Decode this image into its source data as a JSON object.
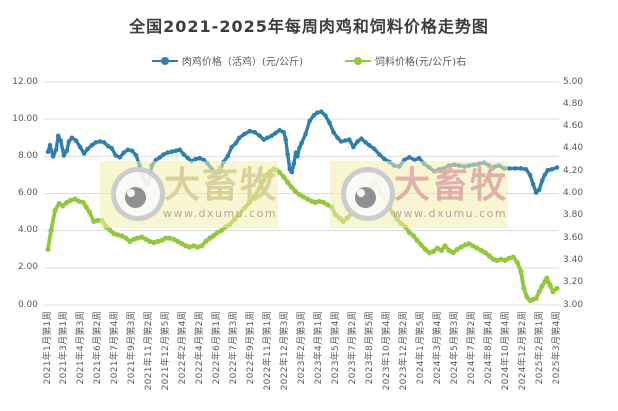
{
  "watermark": {
    "brand": "大畜牧",
    "url": "www.dxumu.com"
  },
  "chart_data": {
    "type": "line",
    "title": "全国2021-2025年每周肉鸡和饲料价格走势图",
    "grid": "horizontal",
    "legend_position": "top",
    "x_encoding": "points_t_v pairs: t = normalized 0-1 position along weekly date axis, v = price value",
    "x_axis": {
      "tick_labels": [
        "2021年1月第1周",
        "2021年3月第1周",
        "2021年4月第3周",
        "2021年6月第2周",
        "2021年7月第4周",
        "2021年9月第3周",
        "2021年11月第2周",
        "2021年12月第5周",
        "2022年2月第4周",
        "2022年4月第2周",
        "2022年6月第1周",
        "2022年7月第3周",
        "2022年9月第1周",
        "2022年11月第1周",
        "2022年12月第3周",
        "2023年2月第3周",
        "2023年4月第1周",
        "2023年5月第4周",
        "2023年7月第2周",
        "2023年8月第5周",
        "2023年10月第4周",
        "2023年12月第2周",
        "2024年1月第5周",
        "2024年3月第4周",
        "2024年5月第3周",
        "2024年7月第2周",
        "2024年8月第4周",
        "2024年10月第4周",
        "2024年12月第2周",
        "2025年2月第1周",
        "2025年3月第4周"
      ]
    },
    "left_axis": {
      "min": 0,
      "max": 12,
      "tick_step": 2,
      "tick_labels": [
        "12.00",
        "10.00",
        "8.00",
        "6.00",
        "4.00",
        "2.00",
        "0.00"
      ]
    },
    "right_axis": {
      "min": 3,
      "max": 5,
      "tick_step": 0.2,
      "tick_labels": [
        "5.00",
        "4.80",
        "4.60",
        "4.40",
        "4.20",
        "4.00",
        "3.80",
        "3.60",
        "3.40",
        "3.20",
        "3.00"
      ]
    },
    "series": [
      {
        "name": "肉鸡价格（活鸡）(元/公斤)",
        "axis": "left",
        "color": "#2f7fad",
        "marker": "circle",
        "points_t_v": [
          [
            0.0,
            8.25
          ],
          [
            0.004,
            8.6
          ],
          [
            0.01,
            8.0
          ],
          [
            0.016,
            8.35
          ],
          [
            0.02,
            9.1
          ],
          [
            0.025,
            8.85
          ],
          [
            0.031,
            8.05
          ],
          [
            0.037,
            8.3
          ],
          [
            0.041,
            8.8
          ],
          [
            0.047,
            9.0
          ],
          [
            0.055,
            8.85
          ],
          [
            0.063,
            8.5
          ],
          [
            0.071,
            8.15
          ],
          [
            0.078,
            8.4
          ],
          [
            0.086,
            8.6
          ],
          [
            0.094,
            8.75
          ],
          [
            0.102,
            8.8
          ],
          [
            0.11,
            8.75
          ],
          [
            0.118,
            8.55
          ],
          [
            0.125,
            8.45
          ],
          [
            0.133,
            8.05
          ],
          [
            0.141,
            7.95
          ],
          [
            0.149,
            8.2
          ],
          [
            0.157,
            8.35
          ],
          [
            0.165,
            8.3
          ],
          [
            0.173,
            8.05
          ],
          [
            0.18,
            7.5
          ],
          [
            0.186,
            6.9
          ],
          [
            0.192,
            6.55
          ],
          [
            0.196,
            6.5
          ],
          [
            0.2,
            6.9
          ],
          [
            0.204,
            7.5
          ],
          [
            0.212,
            7.8
          ],
          [
            0.22,
            7.95
          ],
          [
            0.227,
            8.1
          ],
          [
            0.235,
            8.2
          ],
          [
            0.243,
            8.25
          ],
          [
            0.251,
            8.3
          ],
          [
            0.259,
            8.35
          ],
          [
            0.267,
            8.1
          ],
          [
            0.275,
            7.9
          ],
          [
            0.282,
            7.75
          ],
          [
            0.29,
            7.85
          ],
          [
            0.298,
            7.9
          ],
          [
            0.306,
            7.8
          ],
          [
            0.314,
            7.6
          ],
          [
            0.322,
            7.3
          ],
          [
            0.329,
            7.1
          ],
          [
            0.337,
            7.15
          ],
          [
            0.345,
            7.7
          ],
          [
            0.353,
            8.0
          ],
          [
            0.361,
            8.5
          ],
          [
            0.369,
            8.7
          ],
          [
            0.376,
            9.0
          ],
          [
            0.386,
            9.2
          ],
          [
            0.396,
            9.35
          ],
          [
            0.406,
            9.3
          ],
          [
            0.416,
            9.1
          ],
          [
            0.424,
            8.9
          ],
          [
            0.431,
            9.0
          ],
          [
            0.439,
            9.1
          ],
          [
            0.447,
            9.25
          ],
          [
            0.455,
            9.4
          ],
          [
            0.463,
            9.3
          ],
          [
            0.467,
            8.9
          ],
          [
            0.471,
            8.1
          ],
          [
            0.475,
            7.3
          ],
          [
            0.479,
            7.15
          ],
          [
            0.483,
            7.6
          ],
          [
            0.487,
            8.2
          ],
          [
            0.49,
            8.0
          ],
          [
            0.494,
            8.45
          ],
          [
            0.498,
            8.7
          ],
          [
            0.506,
            9.2
          ],
          [
            0.514,
            9.9
          ],
          [
            0.522,
            10.2
          ],
          [
            0.529,
            10.35
          ],
          [
            0.537,
            10.4
          ],
          [
            0.545,
            10.2
          ],
          [
            0.553,
            9.8
          ],
          [
            0.561,
            9.3
          ],
          [
            0.569,
            9.0
          ],
          [
            0.576,
            8.8
          ],
          [
            0.584,
            8.85
          ],
          [
            0.592,
            8.9
          ],
          [
            0.6,
            8.5
          ],
          [
            0.608,
            8.8
          ],
          [
            0.616,
            8.95
          ],
          [
            0.624,
            8.75
          ],
          [
            0.631,
            8.6
          ],
          [
            0.641,
            8.4
          ],
          [
            0.651,
            8.1
          ],
          [
            0.661,
            7.85
          ],
          [
            0.671,
            7.7
          ],
          [
            0.68,
            7.5
          ],
          [
            0.69,
            7.45
          ],
          [
            0.7,
            7.8
          ],
          [
            0.71,
            7.95
          ],
          [
            0.72,
            7.8
          ],
          [
            0.729,
            7.9
          ],
          [
            0.739,
            7.6
          ],
          [
            0.749,
            7.4
          ],
          [
            0.759,
            7.2
          ],
          [
            0.769,
            7.3
          ],
          [
            0.778,
            7.35
          ],
          [
            0.788,
            7.5
          ],
          [
            0.798,
            7.55
          ],
          [
            0.808,
            7.5
          ],
          [
            0.818,
            7.45
          ],
          [
            0.827,
            7.5
          ],
          [
            0.837,
            7.55
          ],
          [
            0.847,
            7.6
          ],
          [
            0.857,
            7.65
          ],
          [
            0.867,
            7.5
          ],
          [
            0.873,
            7.35
          ],
          [
            0.878,
            7.45
          ],
          [
            0.886,
            7.5
          ],
          [
            0.896,
            7.35
          ],
          [
            0.906,
            7.35
          ],
          [
            0.918,
            7.35
          ],
          [
            0.929,
            7.35
          ],
          [
            0.939,
            7.3
          ],
          [
            0.947,
            7.0
          ],
          [
            0.953,
            6.5
          ],
          [
            0.959,
            6.05
          ],
          [
            0.965,
            6.2
          ],
          [
            0.971,
            6.7
          ],
          [
            0.976,
            7.0
          ],
          [
            0.982,
            7.25
          ],
          [
            0.99,
            7.3
          ],
          [
            1.0,
            7.4
          ]
        ]
      },
      {
        "name": "饲料价格(元/公斤)右",
        "axis": "right",
        "color": "#93c83d",
        "marker": "circle",
        "points_t_v": [
          [
            0.0,
            3.5
          ],
          [
            0.006,
            3.67
          ],
          [
            0.014,
            3.85
          ],
          [
            0.022,
            3.91
          ],
          [
            0.029,
            3.89
          ],
          [
            0.037,
            3.92
          ],
          [
            0.045,
            3.94
          ],
          [
            0.053,
            3.95
          ],
          [
            0.061,
            3.93
          ],
          [
            0.069,
            3.92
          ],
          [
            0.075,
            3.88
          ],
          [
            0.082,
            3.83
          ],
          [
            0.09,
            3.75
          ],
          [
            0.098,
            3.76
          ],
          [
            0.106,
            3.76
          ],
          [
            0.114,
            3.7
          ],
          [
            0.122,
            3.67
          ],
          [
            0.129,
            3.64
          ],
          [
            0.137,
            3.63
          ],
          [
            0.145,
            3.62
          ],
          [
            0.153,
            3.6
          ],
          [
            0.161,
            3.57
          ],
          [
            0.169,
            3.59
          ],
          [
            0.176,
            3.6
          ],
          [
            0.184,
            3.61
          ],
          [
            0.192,
            3.59
          ],
          [
            0.2,
            3.57
          ],
          [
            0.208,
            3.56
          ],
          [
            0.216,
            3.57
          ],
          [
            0.224,
            3.58
          ],
          [
            0.231,
            3.6
          ],
          [
            0.239,
            3.6
          ],
          [
            0.247,
            3.59
          ],
          [
            0.255,
            3.57
          ],
          [
            0.263,
            3.55
          ],
          [
            0.271,
            3.53
          ],
          [
            0.278,
            3.52
          ],
          [
            0.286,
            3.53
          ],
          [
            0.294,
            3.52
          ],
          [
            0.302,
            3.53
          ],
          [
            0.31,
            3.57
          ],
          [
            0.318,
            3.6
          ],
          [
            0.325,
            3.62
          ],
          [
            0.333,
            3.65
          ],
          [
            0.341,
            3.67
          ],
          [
            0.349,
            3.7
          ],
          [
            0.357,
            3.72
          ],
          [
            0.367,
            3.77
          ],
          [
            0.376,
            3.82
          ],
          [
            0.386,
            3.87
          ],
          [
            0.396,
            3.92
          ],
          [
            0.406,
            3.98
          ],
          [
            0.416,
            4.05
          ],
          [
            0.424,
            4.12
          ],
          [
            0.431,
            4.17
          ],
          [
            0.437,
            4.2
          ],
          [
            0.443,
            4.22
          ],
          [
            0.449,
            4.21
          ],
          [
            0.455,
            4.19
          ],
          [
            0.463,
            4.15
          ],
          [
            0.471,
            4.1
          ],
          [
            0.478,
            4.06
          ],
          [
            0.486,
            4.02
          ],
          [
            0.494,
            3.99
          ],
          [
            0.502,
            3.97
          ],
          [
            0.51,
            3.95
          ],
          [
            0.518,
            3.93
          ],
          [
            0.525,
            3.92
          ],
          [
            0.533,
            3.93
          ],
          [
            0.541,
            3.92
          ],
          [
            0.549,
            3.9
          ],
          [
            0.557,
            3.88
          ],
          [
            0.565,
            3.81
          ],
          [
            0.573,
            3.78
          ],
          [
            0.58,
            3.75
          ],
          [
            0.588,
            3.78
          ],
          [
            0.596,
            3.82
          ],
          [
            0.604,
            3.86
          ],
          [
            0.612,
            3.9
          ],
          [
            0.62,
            3.96
          ],
          [
            0.627,
            4.02
          ],
          [
            0.635,
            4.08
          ],
          [
            0.643,
            4.1
          ],
          [
            0.649,
            4.05
          ],
          [
            0.655,
            3.99
          ],
          [
            0.663,
            3.93
          ],
          [
            0.671,
            3.87
          ],
          [
            0.678,
            3.82
          ],
          [
            0.686,
            3.77
          ],
          [
            0.694,
            3.73
          ],
          [
            0.702,
            3.7
          ],
          [
            0.71,
            3.65
          ],
          [
            0.718,
            3.62
          ],
          [
            0.725,
            3.58
          ],
          [
            0.733,
            3.54
          ],
          [
            0.741,
            3.5
          ],
          [
            0.749,
            3.47
          ],
          [
            0.757,
            3.48
          ],
          [
            0.765,
            3.51
          ],
          [
            0.773,
            3.49
          ],
          [
            0.78,
            3.53
          ],
          [
            0.788,
            3.49
          ],
          [
            0.796,
            3.47
          ],
          [
            0.804,
            3.5
          ],
          [
            0.812,
            3.52
          ],
          [
            0.82,
            3.54
          ],
          [
            0.827,
            3.55
          ],
          [
            0.835,
            3.53
          ],
          [
            0.843,
            3.51
          ],
          [
            0.851,
            3.49
          ],
          [
            0.859,
            3.47
          ],
          [
            0.867,
            3.44
          ],
          [
            0.875,
            3.41
          ],
          [
            0.882,
            3.4
          ],
          [
            0.89,
            3.41
          ],
          [
            0.898,
            3.4
          ],
          [
            0.906,
            3.42
          ],
          [
            0.914,
            3.43
          ],
          [
            0.922,
            3.38
          ],
          [
            0.929,
            3.3
          ],
          [
            0.935,
            3.15
          ],
          [
            0.941,
            3.07
          ],
          [
            0.947,
            3.04
          ],
          [
            0.953,
            3.05
          ],
          [
            0.959,
            3.06
          ],
          [
            0.965,
            3.12
          ],
          [
            0.971,
            3.17
          ],
          [
            0.976,
            3.21
          ],
          [
            0.98,
            3.24
          ],
          [
            0.986,
            3.18
          ],
          [
            0.992,
            3.12
          ],
          [
            1.0,
            3.15
          ]
        ]
      }
    ]
  }
}
